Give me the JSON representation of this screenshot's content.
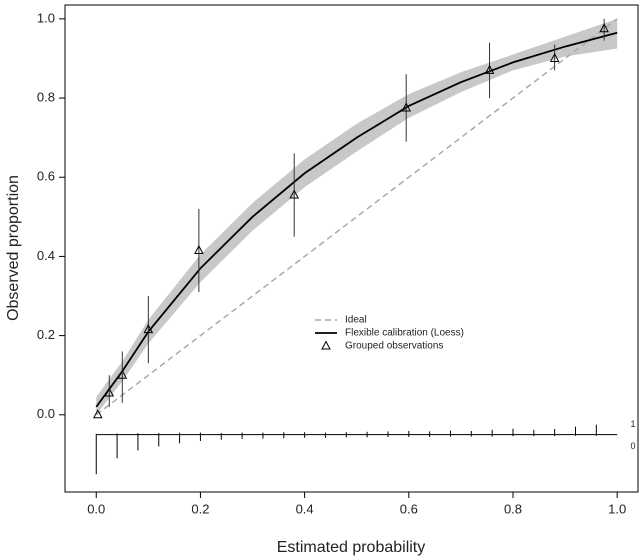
{
  "chart_data": {
    "type": "calibration",
    "x_label": "Estimated probability",
    "y_label": "Observed proportion",
    "xlim": [
      -0.06,
      1.04
    ],
    "ylim": [
      -0.195,
      1.035
    ],
    "xticks": [
      {
        "value": 0,
        "label": "0.0"
      },
      0.2,
      0.4,
      0.6,
      0.8,
      {
        "value": 1,
        "label": "1.0"
      }
    ],
    "yticks": [
      {
        "value": 0,
        "label": "0.0"
      },
      0.2,
      0.4,
      0.6,
      0.8,
      {
        "value": 1,
        "label": "1.0"
      }
    ],
    "ideal": {
      "name": "Ideal",
      "color": "#aaaaaa",
      "x": [
        0,
        1
      ],
      "values": [
        0,
        1
      ]
    },
    "loess": {
      "name": "Flexible calibration (Loess)",
      "color": "#000000",
      "band_color": "#c8c8c8",
      "x": [
        0,
        0.05,
        0.1,
        0.2,
        0.3,
        0.4,
        0.5,
        0.6,
        0.7,
        0.8,
        0.9,
        1.0
      ],
      "values": [
        0.02,
        0.11,
        0.21,
        0.37,
        0.5,
        0.61,
        0.7,
        0.78,
        0.84,
        0.89,
        0.93,
        0.965
      ],
      "lower": [
        0.0,
        0.085,
        0.18,
        0.335,
        0.465,
        0.575,
        0.665,
        0.75,
        0.815,
        0.87,
        0.905,
        0.925
      ],
      "upper": [
        0.045,
        0.135,
        0.24,
        0.405,
        0.535,
        0.645,
        0.735,
        0.81,
        0.865,
        0.91,
        0.955,
        1.0
      ]
    },
    "groups": {
      "name": "Grouped observations",
      "x": [
        0.003,
        0.025,
        0.05,
        0.1,
        0.197,
        0.38,
        0.595,
        0.755,
        0.88,
        0.975
      ],
      "values": [
        0.0,
        0.055,
        0.1,
        0.215,
        0.415,
        0.555,
        0.775,
        0.87,
        0.9,
        0.975
      ],
      "lower": [
        0.0,
        0.02,
        0.03,
        0.13,
        0.31,
        0.45,
        0.69,
        0.8,
        0.87,
        0.945
      ],
      "upper": [
        0.0,
        0.1,
        0.16,
        0.3,
        0.52,
        0.66,
        0.86,
        0.94,
        0.935,
        1.0
      ]
    },
    "rug": {
      "baseline": -0.05,
      "labels": [
        "1",
        "0"
      ],
      "x": [
        0.0,
        0.04,
        0.08,
        0.12,
        0.16,
        0.2,
        0.24,
        0.28,
        0.32,
        0.36,
        0.4,
        0.44,
        0.48,
        0.52,
        0.56,
        0.6,
        0.64,
        0.68,
        0.72,
        0.76,
        0.8,
        0.84,
        0.88,
        0.92,
        0.96
      ],
      "up": [
        0.002,
        0.003,
        0.004,
        0.004,
        0.005,
        0.005,
        0.004,
        0.005,
        0.005,
        0.006,
        0.006,
        0.005,
        0.006,
        0.007,
        0.008,
        0.009,
        0.008,
        0.01,
        0.009,
        0.012,
        0.015,
        0.012,
        0.014,
        0.02,
        0.025
      ],
      "down": [
        0.1,
        0.06,
        0.04,
        0.03,
        0.022,
        0.016,
        0.013,
        0.011,
        0.01,
        0.009,
        0.008,
        0.008,
        0.007,
        0.007,
        0.006,
        0.006,
        0.006,
        0.005,
        0.005,
        0.005,
        0.004,
        0.004,
        0.004,
        0.003,
        0.003
      ]
    }
  }
}
